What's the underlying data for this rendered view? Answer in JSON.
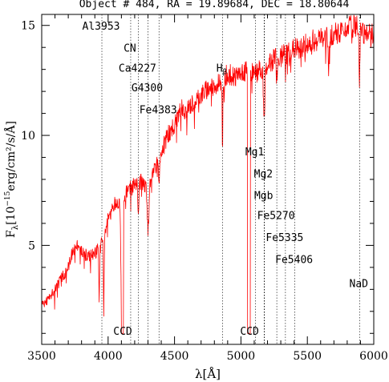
{
  "chart_data": {
    "type": "line",
    "title": "Object # 484, RA = 19.89684, DEC = 18.80644",
    "xlabel": "λ[Å]",
    "ylabel": "F_λ[10^-15 erg/cm²/s/Å]",
    "ylabel_parts": {
      "f": "F",
      "sub": "λ",
      "open": "[10",
      "sup": "−15",
      "rest": "erg/cm²/s/Å]"
    },
    "xlim": [
      3500,
      6000
    ],
    "ylim": [
      0.5,
      15.5
    ],
    "x_ticks": [
      3500,
      4000,
      4500,
      5000,
      5500,
      6000
    ],
    "x_tick_labels": [
      "3500",
      "4000",
      "4500",
      "5000",
      "5500",
      "6000"
    ],
    "y_ticks": [
      5,
      10,
      15
    ],
    "y_tick_labels": [
      "5",
      "10",
      "15"
    ],
    "line_color": "#ff0000",
    "lines": [
      {
        "label": "Al3953",
        "x": 3953,
        "label_y": 14.8
      },
      {
        "label": "CN",
        "x": 4170,
        "label_y": 13.8
      },
      {
        "label": "Ca4227",
        "x": 4227,
        "label_y": 12.9
      },
      {
        "label": "G4300",
        "x": 4300,
        "label_y": 12.0
      },
      {
        "label": "Fe4383",
        "x": 4383,
        "label_y": 11.0
      },
      {
        "label": "H",
        "label_sub": "β",
        "x": 4861,
        "label_y": 12.9
      },
      {
        "label": "Mg1",
        "x": 5110,
        "label_y": 9.1
      },
      {
        "label": "Mg2",
        "x": 5175,
        "label_y": 8.1
      },
      {
        "label": "Mgb",
        "x": 5177,
        "label_y": 7.1
      },
      {
        "label": "Fe5270",
        "x": 5270,
        "label_y": 6.2
      },
      {
        "label": "Fe5335",
        "x": 5335,
        "label_y": 5.2
      },
      {
        "label": "Fe5406",
        "x": 5406,
        "label_y": 4.2
      },
      {
        "label": "NaD",
        "x": 5893,
        "label_y": 3.1
      }
    ],
    "ccd_labels": [
      {
        "label": "CCD",
        "x": 4110
      },
      {
        "label": "CCD",
        "x": 5065
      }
    ],
    "spectrum_anchors": [
      [
        3500,
        2.3
      ],
      [
        3560,
        2.6
      ],
      [
        3620,
        3.2
      ],
      [
        3660,
        3.6
      ],
      [
        3700,
        4.0
      ],
      [
        3740,
        4.9
      ],
      [
        3780,
        5.0
      ],
      [
        3820,
        4.6
      ],
      [
        3860,
        4.5
      ],
      [
        3900,
        4.6
      ],
      [
        3950,
        5.2
      ],
      [
        4000,
        6.2
      ],
      [
        4050,
        6.9
      ],
      [
        4100,
        7.1
      ],
      [
        4150,
        7.5
      ],
      [
        4200,
        7.8
      ],
      [
        4250,
        7.9
      ],
      [
        4300,
        7.7
      ],
      [
        4350,
        8.4
      ],
      [
        4400,
        9.3
      ],
      [
        4450,
        10.0
      ],
      [
        4500,
        10.5
      ],
      [
        4550,
        11.2
      ],
      [
        4600,
        11.2
      ],
      [
        4650,
        11.5
      ],
      [
        4700,
        11.8
      ],
      [
        4750,
        12.1
      ],
      [
        4800,
        12.2
      ],
      [
        4850,
        12.5
      ],
      [
        4900,
        12.8
      ],
      [
        4950,
        12.7
      ],
      [
        5000,
        12.9
      ],
      [
        5050,
        13.0
      ],
      [
        5100,
        12.8
      ],
      [
        5150,
        13.0
      ],
      [
        5200,
        13.1
      ],
      [
        5250,
        13.5
      ],
      [
        5300,
        13.6
      ],
      [
        5350,
        13.7
      ],
      [
        5400,
        13.9
      ],
      [
        5450,
        14.0
      ],
      [
        5500,
        14.2
      ],
      [
        5550,
        14.3
      ],
      [
        5600,
        14.4
      ],
      [
        5650,
        14.4
      ],
      [
        5700,
        14.6
      ],
      [
        5750,
        14.7
      ],
      [
        5800,
        14.9
      ],
      [
        5850,
        15.0
      ],
      [
        5900,
        14.8
      ],
      [
        5950,
        14.6
      ],
      [
        6000,
        14.7
      ]
    ],
    "absorption_dips": [
      [
        3933,
        2.4,
        5
      ],
      [
        3968,
        2.7,
        5
      ],
      [
        4102,
        4.9,
        8
      ],
      [
        4227,
        1.4,
        5
      ],
      [
        4300,
        2.0,
        10
      ],
      [
        4383,
        1.3,
        6
      ],
      [
        4861,
        3.0,
        4
      ],
      [
        5175,
        2.5,
        6
      ],
      [
        5270,
        1.0,
        5
      ],
      [
        5335,
        0.8,
        5
      ],
      [
        5660,
        1.4,
        5
      ],
      [
        5893,
        2.7,
        4
      ]
    ],
    "gaps": [
      [
        4098,
        4117,
        1.0
      ],
      [
        5048,
        5072,
        1.0
      ]
    ]
  }
}
